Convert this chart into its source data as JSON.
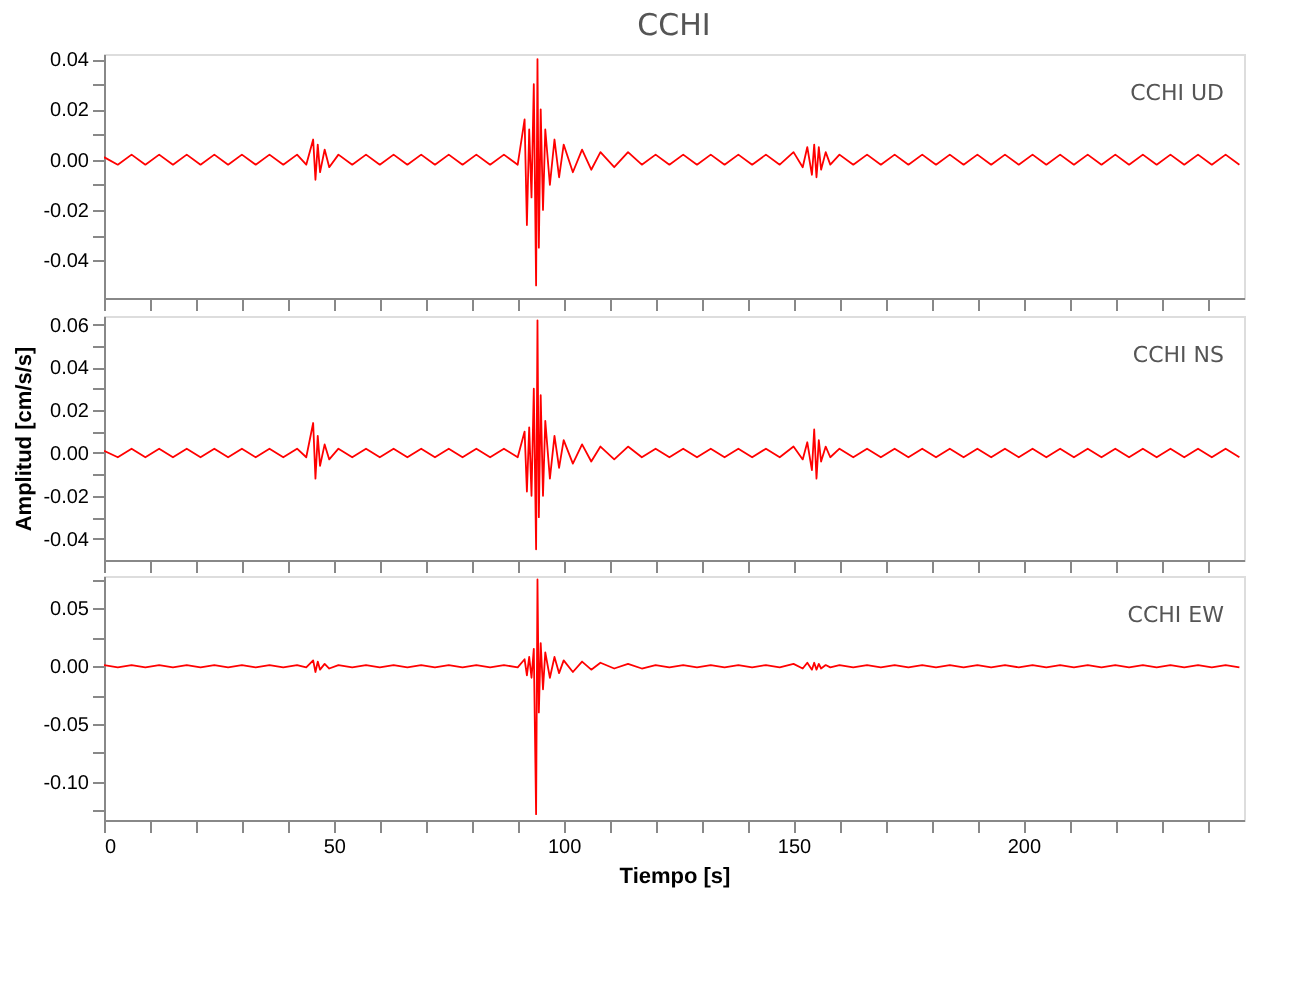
{
  "chart_data": [
    {
      "type": "line",
      "title": "CCHI",
      "tick_labels": "y",
      "grid": false,
      "legend": false,
      "x": [
        0,
        3,
        6,
        9,
        12,
        15,
        18,
        21,
        24,
        27,
        30,
        33,
        36,
        39,
        42,
        44,
        45.5,
        46,
        46.5,
        47,
        48,
        49,
        51,
        54,
        57,
        60,
        63,
        66,
        69,
        72,
        75,
        78,
        81,
        84,
        87,
        90,
        91.5,
        92,
        92.5,
        93,
        93.5,
        94,
        94.3,
        94.6,
        95,
        95.5,
        96,
        97,
        98,
        99,
        100,
        102,
        104,
        106,
        108,
        111,
        114,
        117,
        120,
        123,
        126,
        129,
        132,
        135,
        138,
        141,
        144,
        147,
        150,
        152,
        153,
        154,
        154.5,
        155,
        155.5,
        156,
        157,
        158,
        160,
        163,
        166,
        169,
        172,
        175,
        178,
        181,
        184,
        187,
        190,
        193,
        196,
        199,
        202,
        205,
        208,
        211,
        214,
        217,
        220,
        223,
        226,
        229,
        232,
        235,
        238,
        241,
        244,
        247
      ],
      "xlim": [
        0,
        248
      ],
      "xticks": [
        0,
        {
          "value": 10,
          "label": null
        },
        {
          "value": 20,
          "label": null
        },
        {
          "value": 30,
          "label": null
        },
        {
          "value": 40,
          "label": null
        },
        50,
        {
          "value": 60,
          "label": null
        },
        {
          "value": 70,
          "label": null
        },
        {
          "value": 80,
          "label": null
        },
        {
          "value": 90,
          "label": null
        },
        100,
        {
          "value": 110,
          "label": null
        },
        {
          "value": 120,
          "label": null
        },
        {
          "value": 130,
          "label": null
        },
        {
          "value": 140,
          "label": null
        },
        150,
        {
          "value": 160,
          "label": null
        },
        {
          "value": 170,
          "label": null
        },
        {
          "value": 180,
          "label": null
        },
        {
          "value": 190,
          "label": null
        },
        200,
        {
          "value": 210,
          "label": null
        },
        {
          "value": 220,
          "label": null
        },
        {
          "value": 230,
          "label": null
        },
        {
          "value": 240,
          "label": null
        }
      ],
      "ylim": [
        -0.055,
        0.042
      ],
      "yticks": [
        {
          "value": -0.04,
          "label": "-0.04"
        },
        {
          "value": -0.03,
          "label": null
        },
        {
          "value": -0.02,
          "label": "-0.02"
        },
        {
          "value": -0.01,
          "label": null
        },
        {
          "value": 0,
          "label": "0.00"
        },
        {
          "value": 0.01,
          "label": null
        },
        {
          "value": 0.02,
          "label": "0.02"
        },
        {
          "value": 0.03,
          "label": null
        },
        {
          "value": 0.04,
          "label": "0.04"
        }
      ],
      "series": [
        {
          "name": "CCHI   UD",
          "color": "#ff0000",
          "values": [
            0.001,
            -0.002,
            0.002,
            -0.002,
            0.002,
            -0.002,
            0.002,
            -0.002,
            0.002,
            -0.002,
            0.002,
            -0.002,
            0.002,
            -0.002,
            0.002,
            -0.002,
            0.008,
            -0.008,
            0.006,
            -0.005,
            0.004,
            -0.003,
            0.002,
            -0.002,
            0.002,
            -0.002,
            0.002,
            -0.002,
            0.002,
            -0.002,
            0.002,
            -0.002,
            0.002,
            -0.002,
            0.002,
            -0.002,
            0.016,
            -0.026,
            0.012,
            -0.015,
            0.03,
            -0.05,
            0.04,
            -0.035,
            0.02,
            -0.02,
            0.012,
            -0.01,
            0.008,
            -0.007,
            0.006,
            -0.005,
            0.004,
            -0.004,
            0.003,
            -0.003,
            0.003,
            -0.002,
            0.002,
            -0.002,
            0.002,
            -0.002,
            0.002,
            -0.002,
            0.002,
            -0.002,
            0.002,
            -0.002,
            0.003,
            -0.003,
            0.005,
            -0.006,
            0.006,
            -0.007,
            0.005,
            -0.004,
            0.003,
            -0.002,
            0.002,
            -0.002,
            0.002,
            -0.002,
            0.002,
            -0.002,
            0.002,
            -0.002,
            0.002,
            -0.002,
            0.002,
            -0.002,
            0.002,
            -0.002,
            0.002,
            -0.002,
            0.002,
            -0.002,
            0.002,
            -0.002,
            0.002,
            -0.002,
            0.002,
            -0.002,
            0.002,
            -0.002,
            0.002,
            -0.002,
            0.002,
            -0.002
          ]
        }
      ]
    },
    {
      "type": "line",
      "ylabel": "Amplitud [cm/s/s]",
      "tick_labels": "y",
      "grid": false,
      "legend": false,
      "x": [
        0,
        3,
        6,
        9,
        12,
        15,
        18,
        21,
        24,
        27,
        30,
        33,
        36,
        39,
        42,
        44,
        45.5,
        46,
        46.5,
        47,
        48,
        49,
        51,
        54,
        57,
        60,
        63,
        66,
        69,
        72,
        75,
        78,
        81,
        84,
        87,
        90,
        91.5,
        92,
        92.5,
        93,
        93.5,
        94,
        94.3,
        94.6,
        95,
        95.5,
        96,
        97,
        98,
        99,
        100,
        102,
        104,
        106,
        108,
        111,
        114,
        117,
        120,
        123,
        126,
        129,
        132,
        135,
        138,
        141,
        144,
        147,
        150,
        152,
        153,
        154,
        154.5,
        155,
        155.5,
        156,
        157,
        158,
        160,
        163,
        166,
        169,
        172,
        175,
        178,
        181,
        184,
        187,
        190,
        193,
        196,
        199,
        202,
        205,
        208,
        211,
        214,
        217,
        220,
        223,
        226,
        229,
        232,
        235,
        238,
        241,
        244,
        247
      ],
      "xlim": [
        0,
        248
      ],
      "xticks": [
        0,
        {
          "value": 10,
          "label": null
        },
        {
          "value": 20,
          "label": null
        },
        {
          "value": 30,
          "label": null
        },
        {
          "value": 40,
          "label": null
        },
        50,
        {
          "value": 60,
          "label": null
        },
        {
          "value": 70,
          "label": null
        },
        {
          "value": 80,
          "label": null
        },
        {
          "value": 90,
          "label": null
        },
        100,
        {
          "value": 110,
          "label": null
        },
        {
          "value": 120,
          "label": null
        },
        {
          "value": 130,
          "label": null
        },
        {
          "value": 140,
          "label": null
        },
        150,
        {
          "value": 160,
          "label": null
        },
        {
          "value": 170,
          "label": null
        },
        {
          "value": 180,
          "label": null
        },
        {
          "value": 190,
          "label": null
        },
        200,
        {
          "value": 210,
          "label": null
        },
        {
          "value": 220,
          "label": null
        },
        {
          "value": 230,
          "label": null
        },
        {
          "value": 240,
          "label": null
        }
      ],
      "ylim": [
        -0.05,
        0.064
      ],
      "yticks": [
        {
          "value": -0.04,
          "label": "-0.04"
        },
        {
          "value": -0.03,
          "label": null
        },
        {
          "value": -0.02,
          "label": "-0.02"
        },
        {
          "value": -0.01,
          "label": null
        },
        {
          "value": 0,
          "label": "0.00"
        },
        {
          "value": 0.01,
          "label": null
        },
        {
          "value": 0.02,
          "label": "0.02"
        },
        {
          "value": 0.03,
          "label": null
        },
        {
          "value": 0.04,
          "label": "0.04"
        },
        {
          "value": 0.05,
          "label": null
        },
        {
          "value": 0.06,
          "label": "0.06"
        }
      ],
      "series": [
        {
          "name": "CCHI   NS",
          "color": "#ff0000",
          "values": [
            0.001,
            -0.002,
            0.002,
            -0.002,
            0.002,
            -0.002,
            0.002,
            -0.002,
            0.002,
            -0.002,
            0.002,
            -0.002,
            0.002,
            -0.002,
            0.002,
            -0.002,
            0.014,
            -0.012,
            0.008,
            -0.006,
            0.004,
            -0.003,
            0.002,
            -0.002,
            0.002,
            -0.002,
            0.002,
            -0.002,
            0.002,
            -0.002,
            0.002,
            -0.002,
            0.002,
            -0.002,
            0.002,
            -0.002,
            0.01,
            -0.018,
            0.012,
            -0.02,
            0.03,
            -0.045,
            0.062,
            -0.03,
            0.027,
            -0.02,
            0.015,
            -0.012,
            0.008,
            -0.007,
            0.006,
            -0.005,
            0.004,
            -0.004,
            0.003,
            -0.003,
            0.003,
            -0.002,
            0.002,
            -0.002,
            0.002,
            -0.002,
            0.002,
            -0.002,
            0.002,
            -0.002,
            0.002,
            -0.002,
            0.003,
            -0.003,
            0.005,
            -0.008,
            0.011,
            -0.012,
            0.006,
            -0.004,
            0.003,
            -0.002,
            0.002,
            -0.002,
            0.002,
            -0.002,
            0.002,
            -0.002,
            0.002,
            -0.002,
            0.002,
            -0.002,
            0.002,
            -0.002,
            0.002,
            -0.002,
            0.002,
            -0.002,
            0.002,
            -0.002,
            0.002,
            -0.002,
            0.002,
            -0.002,
            0.002,
            -0.002,
            0.002,
            -0.002,
            0.002,
            -0.002,
            0.002,
            -0.002
          ]
        }
      ]
    },
    {
      "type": "line",
      "xlabel": "Tiempo [s]",
      "grid": false,
      "legend": false,
      "x": [
        0,
        3,
        6,
        9,
        12,
        15,
        18,
        21,
        24,
        27,
        30,
        33,
        36,
        39,
        42,
        44,
        45.5,
        46,
        46.5,
        47,
        48,
        49,
        51,
        54,
        57,
        60,
        63,
        66,
        69,
        72,
        75,
        78,
        81,
        84,
        87,
        90,
        91.5,
        92,
        92.5,
        93,
        93.5,
        94,
        94.3,
        94.6,
        95,
        95.5,
        96,
        97,
        98,
        99,
        100,
        102,
        104,
        106,
        108,
        111,
        114,
        117,
        120,
        123,
        126,
        129,
        132,
        135,
        138,
        141,
        144,
        147,
        150,
        152,
        153,
        154,
        154.5,
        155,
        155.5,
        156,
        157,
        158,
        160,
        163,
        166,
        169,
        172,
        175,
        178,
        181,
        184,
        187,
        190,
        193,
        196,
        199,
        202,
        205,
        208,
        211,
        214,
        217,
        220,
        223,
        226,
        229,
        232,
        235,
        238,
        241,
        244,
        247
      ],
      "xlim": [
        0,
        248
      ],
      "xticks": [
        0,
        {
          "value": 10,
          "label": null
        },
        {
          "value": 20,
          "label": null
        },
        {
          "value": 30,
          "label": null
        },
        {
          "value": 40,
          "label": null
        },
        50,
        {
          "value": 60,
          "label": null
        },
        {
          "value": 70,
          "label": null
        },
        {
          "value": 80,
          "label": null
        },
        {
          "value": 90,
          "label": null
        },
        100,
        {
          "value": 110,
          "label": null
        },
        {
          "value": 120,
          "label": null
        },
        {
          "value": 130,
          "label": null
        },
        {
          "value": 140,
          "label": null
        },
        150,
        {
          "value": 160,
          "label": null
        },
        {
          "value": 170,
          "label": null
        },
        {
          "value": 180,
          "label": null
        },
        {
          "value": 190,
          "label": null
        },
        200,
        {
          "value": 210,
          "label": null
        },
        {
          "value": 220,
          "label": null
        },
        {
          "value": 230,
          "label": null
        },
        {
          "value": 240,
          "label": null
        }
      ],
      "ylim": [
        -0.133,
        0.078
      ],
      "yticks": [
        {
          "value": -0.125,
          "label": null
        },
        {
          "value": -0.1,
          "label": "-0.10"
        },
        {
          "value": -0.075,
          "label": null
        },
        {
          "value": -0.05,
          "label": "-0.05"
        },
        {
          "value": -0.025,
          "label": null
        },
        {
          "value": 0,
          "label": "0.00"
        },
        {
          "value": 0.025,
          "label": null
        },
        {
          "value": 0.05,
          "label": "0.05"
        },
        {
          "value": 0.075,
          "label": null
        }
      ],
      "series": [
        {
          "name": "CCHI   EW",
          "color": "#ff0000",
          "values": [
            0.001,
            -0.001,
            0.001,
            -0.001,
            0.001,
            -0.001,
            0.001,
            -0.001,
            0.001,
            -0.001,
            0.001,
            -0.001,
            0.001,
            -0.001,
            0.001,
            -0.001,
            0.005,
            -0.005,
            0.004,
            -0.003,
            0.002,
            -0.002,
            0.001,
            -0.001,
            0.001,
            -0.001,
            0.001,
            -0.001,
            0.001,
            -0.001,
            0.001,
            -0.001,
            0.001,
            -0.001,
            0.001,
            -0.001,
            0.006,
            -0.008,
            0.008,
            -0.01,
            0.015,
            -0.128,
            0.075,
            -0.04,
            0.02,
            -0.02,
            0.012,
            -0.01,
            0.008,
            -0.006,
            0.005,
            -0.005,
            0.004,
            -0.003,
            0.003,
            -0.002,
            0.002,
            -0.002,
            0.001,
            -0.001,
            0.001,
            -0.001,
            0.001,
            -0.001,
            0.001,
            -0.001,
            0.001,
            -0.001,
            0.002,
            -0.002,
            0.003,
            -0.003,
            0.003,
            -0.003,
            0.002,
            -0.002,
            0.001,
            -0.001,
            0.001,
            -0.001,
            0.001,
            -0.001,
            0.001,
            -0.001,
            0.001,
            -0.001,
            0.001,
            -0.001,
            0.001,
            -0.001,
            0.001,
            -0.001,
            0.001,
            -0.001,
            0.001,
            -0.001,
            0.001,
            -0.001,
            0.001,
            -0.001,
            0.001,
            -0.001,
            0.001,
            -0.001,
            0.001,
            -0.001,
            0.001,
            -0.001
          ]
        }
      ]
    }
  ]
}
